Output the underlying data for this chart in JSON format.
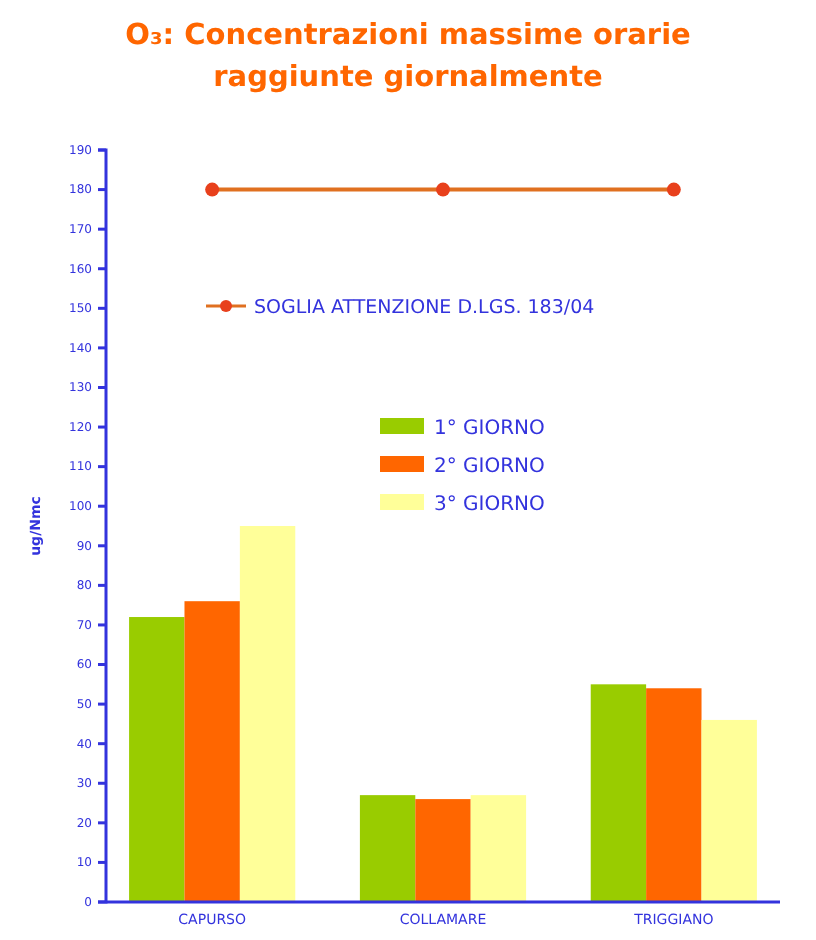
{
  "chart_data": {
    "type": "bar",
    "title": "O₃: Concentrazioni massime orarie raggiunte giornalmente",
    "ylabel": "ug/Nmc",
    "categories": [
      "CAPURSO",
      "COLLAMARE",
      "TRIGGIANO"
    ],
    "series": [
      {
        "name": "SOGLIA ATTENZIONE D.LGS. 183/04",
        "type": "line",
        "color": "#e8401c",
        "values": [
          180,
          180,
          180
        ],
        "marker": "circle"
      },
      {
        "name": "1° GIORNO",
        "color": "#99cc00",
        "values": [
          72,
          27,
          55
        ]
      },
      {
        "name": "2° GIORNO",
        "color": "#ff6600",
        "values": [
          76,
          26,
          54
        ]
      },
      {
        "name": "3° GIORNO",
        "color": "#ffff99",
        "values": [
          95,
          27,
          46
        ]
      }
    ],
    "ylim": [
      0,
      190
    ],
    "yticks": [
      0,
      10,
      20,
      30,
      40,
      50,
      60,
      70,
      80,
      90,
      100,
      110,
      120,
      130,
      140,
      150,
      160,
      170,
      180,
      190
    ],
    "grid": false,
    "legend": "top"
  }
}
